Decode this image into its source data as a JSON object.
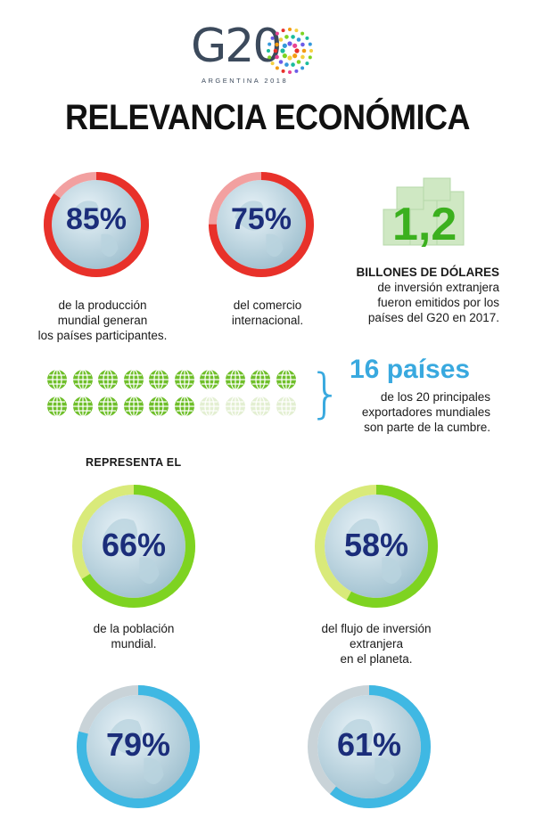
{
  "logo": {
    "text": "G20",
    "subtitle": "ARGENTINA 2018"
  },
  "title": "RELEVANCIA ECONÓMICA",
  "top_stats": [
    {
      "value": "85%",
      "caption": [
        "de la producción",
        "mundial generan",
        "los países participantes."
      ],
      "fraction": 0.85,
      "color": "#e8312a",
      "track": "#f2a0a0"
    },
    {
      "value": "75%",
      "caption": [
        "del comercio",
        "internacional."
      ],
      "fraction": 0.75,
      "color": "#e8312a",
      "track": "#f2a0a0"
    }
  ],
  "investment": {
    "value": "1,2",
    "lines": [
      "BILLONES DE DÓLARES",
      "de inversión extranjera",
      "fueron emitidos por los",
      "países del G20 en 2017."
    ]
  },
  "countries": {
    "title": "16 países",
    "lines": [
      "de los 20 principales",
      "exportadores  mundiales",
      "son parte de la cumbre."
    ],
    "total": 20,
    "highlighted": 16
  },
  "represent_label": "REPRESENTA EL",
  "middle_stats": [
    {
      "value": "66%",
      "caption": [
        "de la población",
        "mundial."
      ],
      "fraction": 0.66,
      "color": "#7ed321",
      "track": "#d9ea7a"
    },
    {
      "value": "58%",
      "caption": [
        "del flujo de inversión",
        "extranjera",
        "en el planeta."
      ],
      "fraction": 0.58,
      "color": "#7ed321",
      "track": "#d9ea7a"
    }
  ],
  "bottom_stats": [
    {
      "value": "79%",
      "fraction": 0.79,
      "color": "#3fb8e3",
      "track": "#c9d3d8"
    },
    {
      "value": "61%",
      "fraction": 0.61,
      "color": "#3fb8e3",
      "track": "#c9d3d8"
    }
  ]
}
